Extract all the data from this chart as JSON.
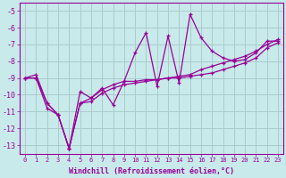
{
  "xlabel": "Windchill (Refroidissement éolien,°C)",
  "ylabel": "",
  "bg_color": "#c8eaea",
  "line_color": "#990099",
  "grid_color": "#aacccc",
  "x_ticks": [
    0,
    1,
    2,
    3,
    4,
    5,
    6,
    7,
    8,
    9,
    10,
    11,
    12,
    13,
    14,
    15,
    16,
    17,
    18,
    19,
    20,
    21,
    22,
    23
  ],
  "y_ticks": [
    -5,
    -6,
    -7,
    -8,
    -9,
    -10,
    -11,
    -12,
    -13
  ],
  "ylim": [
    -13.5,
    -4.5
  ],
  "xlim": [
    -0.5,
    23.5
  ],
  "series": [
    {
      "x": [
        0,
        1,
        2,
        3,
        4,
        5,
        6,
        7,
        8,
        9,
        10,
        11,
        12,
        13,
        14,
        15,
        16,
        17,
        18,
        19,
        20,
        21,
        22,
        23
      ],
      "y": [
        -9.0,
        -8.8,
        -10.5,
        -11.2,
        -13.2,
        -9.8,
        -10.2,
        -9.6,
        -10.6,
        -9.2,
        -7.5,
        -6.3,
        -9.5,
        -6.5,
        -9.3,
        -5.2,
        -6.6,
        -7.4,
        -7.8,
        -8.0,
        -7.9,
        -7.5,
        -6.8,
        -6.8
      ]
    },
    {
      "x": [
        0,
        1,
        2,
        3,
        4,
        5,
        6,
        7,
        8,
        9,
        10,
        11,
        12,
        13,
        14,
        15,
        16,
        17,
        18,
        19,
        20,
        21,
        22,
        23
      ],
      "y": [
        -9.0,
        -9.0,
        -10.5,
        -11.2,
        -13.2,
        -10.5,
        -10.2,
        -9.7,
        -9.4,
        -9.2,
        -9.2,
        -9.1,
        -9.1,
        -9.0,
        -9.0,
        -8.9,
        -8.8,
        -8.7,
        -8.5,
        -8.3,
        -8.1,
        -7.8,
        -7.2,
        -6.9
      ]
    },
    {
      "x": [
        0,
        1,
        2,
        3,
        4,
        5,
        6,
        7,
        8,
        9,
        10,
        11,
        12,
        13,
        14,
        15,
        16,
        17,
        18,
        19,
        20,
        21,
        22,
        23
      ],
      "y": [
        -9.0,
        -9.0,
        -10.8,
        -11.2,
        -13.2,
        -10.5,
        -10.4,
        -9.9,
        -9.6,
        -9.4,
        -9.3,
        -9.2,
        -9.1,
        -9.0,
        -8.9,
        -8.8,
        -8.5,
        -8.3,
        -8.1,
        -7.9,
        -7.7,
        -7.4,
        -7.0,
        -6.7
      ]
    }
  ]
}
